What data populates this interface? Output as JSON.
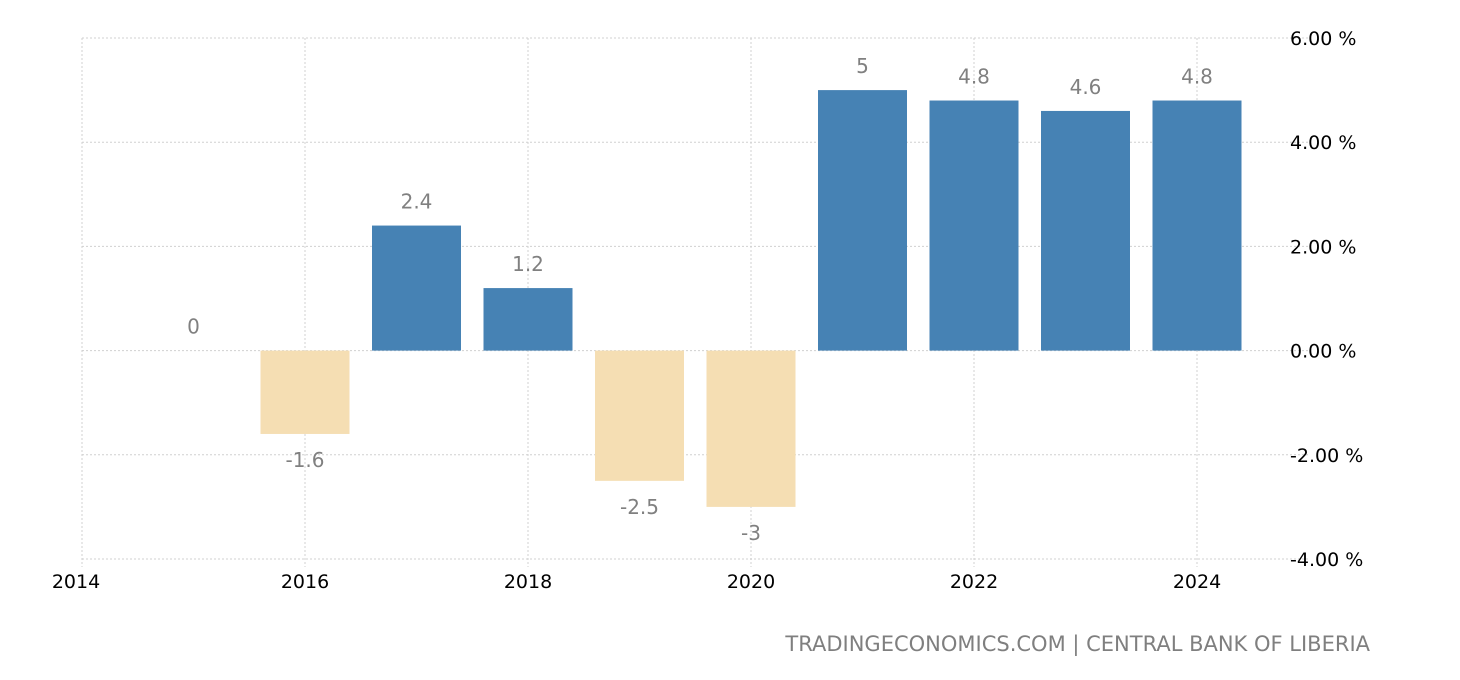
{
  "chart_data": {
    "type": "bar",
    "categories": [
      "2015",
      "2016",
      "2017",
      "2018",
      "2019",
      "2020",
      "2021",
      "2022",
      "2023",
      "2024"
    ],
    "values": [
      0,
      -1.6,
      2.4,
      1.2,
      -2.5,
      -3,
      5,
      4.8,
      4.6,
      4.8
    ],
    "data_labels": [
      "0",
      "-1.6",
      "2.4",
      "1.2",
      "-2.5",
      "-3",
      "5",
      "4.8",
      "4.6",
      "4.8"
    ],
    "x_ticks": [
      "2014",
      "2016",
      "2018",
      "2020",
      "2022",
      "2024"
    ],
    "y_ticks": [
      "6.00 %",
      "4.00 %",
      "2.00 %",
      "0.00 %",
      "-2.00 %",
      "-4.00 %"
    ],
    "y_tick_values": [
      6,
      4,
      2,
      0,
      -2,
      -4
    ],
    "ylim": [
      -4,
      6
    ],
    "xlim": [
      2014,
      2025
    ],
    "y_axis_side": "right",
    "grid": true,
    "colors": {
      "positive": "#4682b4",
      "negative": "#f5deb3"
    },
    "title": "",
    "xlabel": "",
    "ylabel": ""
  },
  "source": "TRADINGECONOMICS.COM | CENTRAL BANK OF LIBERIA"
}
